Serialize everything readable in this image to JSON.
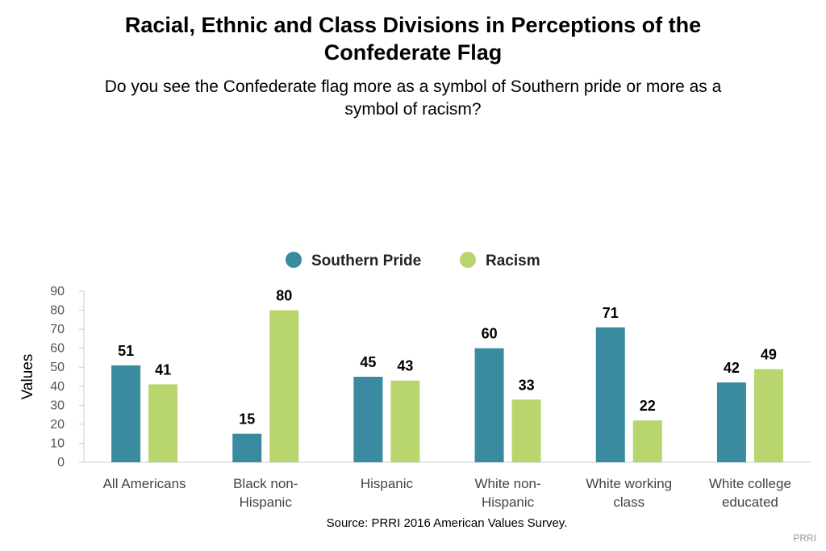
{
  "chart_data": {
    "type": "bar",
    "title_lines": [
      "Racial, Ethnic and Class Divisions in Perceptions of the",
      "Confederate Flag"
    ],
    "subtitle_lines": [
      "Do you see the Confederate flag more as a symbol of Southern pride or more as a",
      "symbol of racism?"
    ],
    "categories": [
      [
        "All Americans"
      ],
      [
        "Black non-",
        "Hispanic"
      ],
      [
        "Hispanic"
      ],
      [
        "White non-",
        "Hispanic"
      ],
      [
        "White working",
        "class"
      ],
      [
        "White college",
        "educated"
      ]
    ],
    "series": [
      {
        "name": "Southern Pride",
        "color": "#3a8aa0",
        "values": [
          51,
          15,
          45,
          60,
          71,
          42
        ]
      },
      {
        "name": "Racism",
        "color": "#b9d56e",
        "values": [
          41,
          80,
          43,
          33,
          22,
          49
        ]
      }
    ],
    "ylabel": "Values",
    "ylim": [
      0,
      90
    ],
    "yticks": [
      0,
      10,
      20,
      30,
      40,
      50,
      60,
      70,
      80,
      90
    ],
    "grid": false,
    "legend_position": "top-center"
  },
  "source": "Source: PRRI 2016 American Values Survey.",
  "credit": "PRRI"
}
